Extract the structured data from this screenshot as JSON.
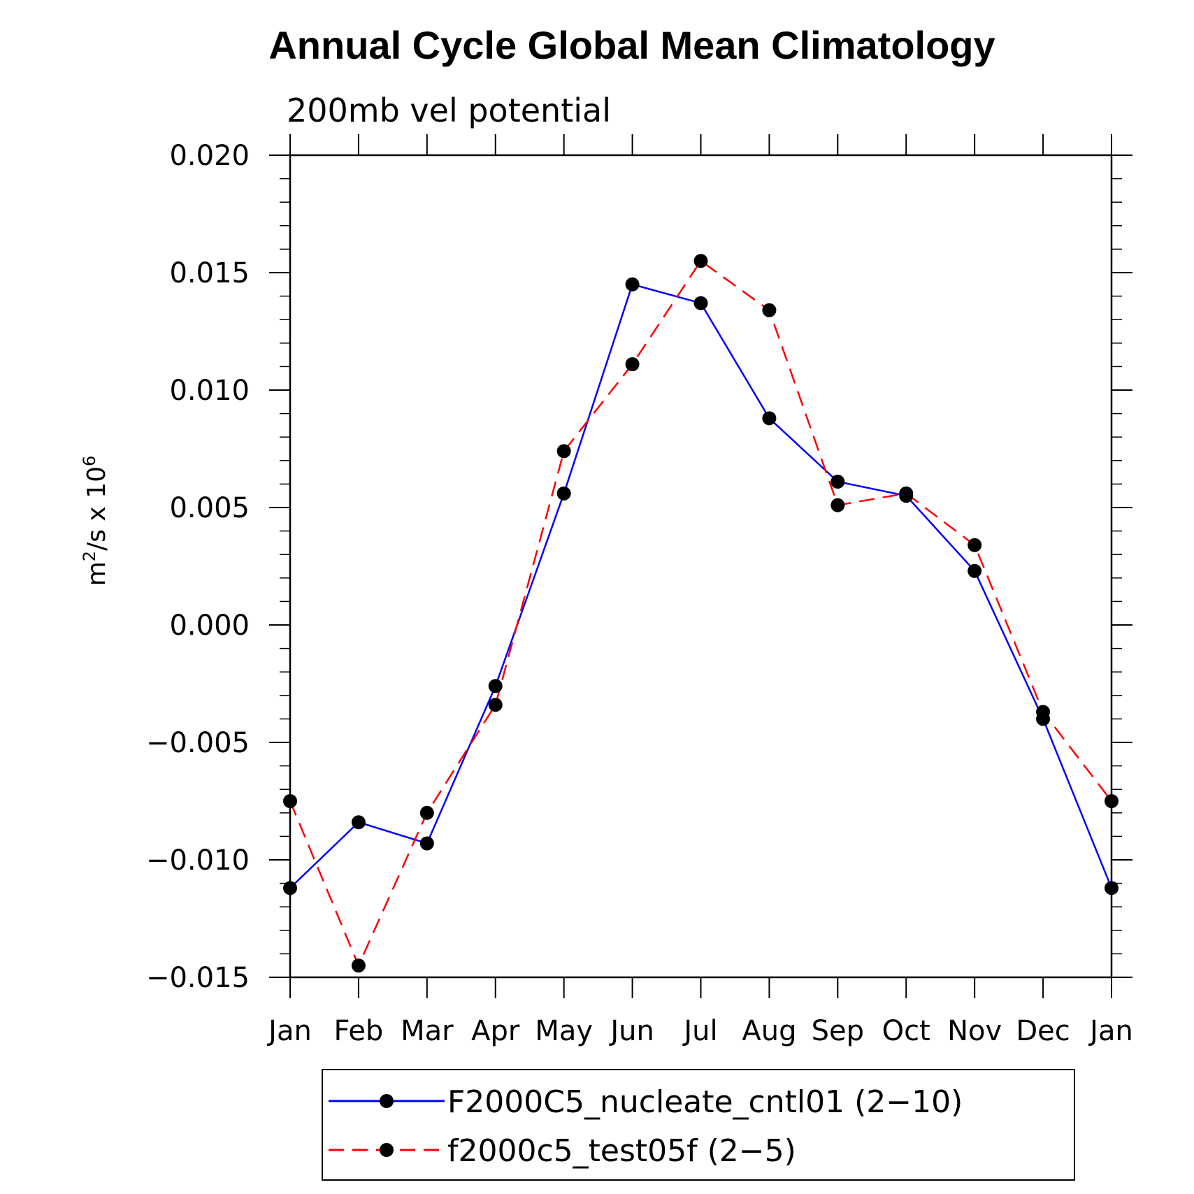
{
  "chart_data": {
    "type": "line",
    "title": "Annual Cycle Global Mean Climatology",
    "subtitle": "200mb vel potential",
    "xlabel": "",
    "ylabel_base": "m",
    "ylabel_sup1": "2",
    "ylabel_mid": "/s x 10",
    "ylabel_sup2": "6",
    "categories": [
      "Jan",
      "Feb",
      "Mar",
      "Apr",
      "May",
      "Jun",
      "Jul",
      "Aug",
      "Sep",
      "Oct",
      "Nov",
      "Dec",
      "Jan"
    ],
    "ylim": [
      -0.015,
      0.02
    ],
    "yticks": [
      -0.015,
      -0.01,
      -0.005,
      0.0,
      0.005,
      0.01,
      0.015,
      0.02
    ],
    "ytick_labels": [
      "−0.015",
      "−0.010",
      "−0.005",
      "0.000",
      "0.005",
      "0.010",
      "0.015",
      "0.020"
    ],
    "series": [
      {
        "name": "F2000C5_nucleate_cntl01 (2−10)",
        "color": "#0000ff",
        "style": "solid",
        "marker": "filled-circle",
        "values": [
          -0.0112,
          -0.0084,
          -0.0093,
          -0.0026,
          0.0056,
          0.0145,
          0.0137,
          0.0088,
          0.0061,
          0.0055,
          0.0023,
          -0.004,
          -0.0112
        ]
      },
      {
        "name": "f2000c5_test05f (2−5)",
        "color": "#ff0000",
        "style": "dashed",
        "marker": "filled-circle",
        "values": [
          -0.0075,
          -0.0145,
          -0.008,
          -0.0034,
          0.0074,
          0.0111,
          0.0155,
          0.0134,
          0.0051,
          0.0056,
          0.0034,
          -0.0037,
          -0.0075
        ]
      }
    ],
    "legend_position": "bottom",
    "grid": false
  }
}
